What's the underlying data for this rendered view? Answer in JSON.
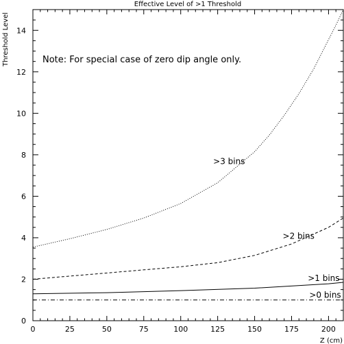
{
  "chart_data": {
    "type": "line",
    "title": "Effective Level of >1 Threshold",
    "xlabel": "Z (cm)",
    "ylabel": "Threshold Level",
    "xlim": [
      0,
      210
    ],
    "ylim": [
      0,
      15
    ],
    "grid": false,
    "note": "Note: For special case of zero dip angle only.",
    "x_ticks": [
      "0",
      "25",
      "50",
      "75",
      "100",
      "125",
      "150",
      "175",
      "200"
    ],
    "y_ticks": [
      "0",
      "2",
      "4",
      "6",
      "8",
      "10",
      "12",
      "14"
    ],
    "x_tick_values": [
      0,
      25,
      50,
      75,
      100,
      125,
      150,
      175,
      200
    ],
    "y_tick_values": [
      0,
      2,
      4,
      6,
      8,
      10,
      12,
      14
    ],
    "series": [
      {
        "name": ">3 bins",
        "line_style": "dotted",
        "x": [
          0,
          25,
          50,
          75,
          100,
          125,
          150,
          160,
          170,
          180,
          190,
          200,
          205,
          210
        ],
        "y": [
          3.55,
          3.95,
          4.4,
          4.95,
          5.65,
          6.65,
          8.15,
          8.95,
          9.9,
          10.95,
          12.15,
          13.55,
          14.25,
          15.0
        ]
      },
      {
        "name": ">2 bins",
        "line_style": "dashed",
        "x": [
          0,
          25,
          50,
          75,
          100,
          125,
          150,
          175,
          200,
          210
        ],
        "y": [
          2.0,
          2.15,
          2.3,
          2.45,
          2.6,
          2.8,
          3.15,
          3.7,
          4.5,
          4.95
        ]
      },
      {
        "name": ">1 bins",
        "line_style": "solid",
        "x": [
          0,
          50,
          100,
          150,
          200,
          210
        ],
        "y": [
          1.3,
          1.35,
          1.45,
          1.57,
          1.78,
          1.85
        ]
      },
      {
        "name": ">0 bins",
        "line_style": "dashdot",
        "x": [
          0,
          210
        ],
        "y": [
          1.0,
          1.0
        ]
      }
    ],
    "annotations": [
      {
        "text": ">3 bins",
        "x": 122,
        "y": 7.55
      },
      {
        "text": ">2 bins",
        "x": 169,
        "y": 3.95
      },
      {
        "text": ">1 bins",
        "x": 186,
        "y": 1.92
      },
      {
        "text": ">0 bins",
        "x": 187,
        "y": 1.1
      }
    ]
  }
}
